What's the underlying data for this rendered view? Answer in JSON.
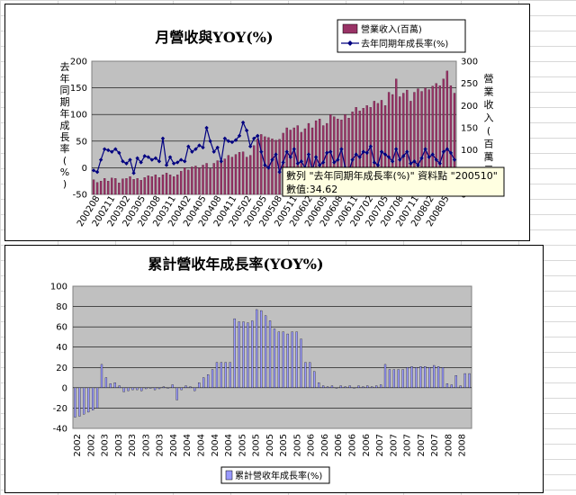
{
  "chart_data": [
    {
      "type": "bar+line",
      "title": "月營收與YOY(%)",
      "left_axis_label": "去年同期年成長率(%)",
      "right_axis_label": "營業收入(百萬元)",
      "left_ylim": [
        -50,
        200
      ],
      "left_ticks": [
        "-50",
        "0",
        "50",
        "100",
        "150",
        "200"
      ],
      "right_ylim": [
        0,
        300
      ],
      "right_ticks": [
        "0",
        "50",
        "100",
        "150",
        "200",
        "250",
        "300"
      ],
      "x_tick_labels": [
        "200208",
        "200211",
        "200302",
        "200305",
        "200308",
        "200311",
        "200402",
        "200405",
        "200408",
        "200411",
        "200502",
        "200505",
        "200508",
        "200511",
        "200602",
        "200605",
        "200608",
        "200611",
        "200702",
        "200705",
        "200708",
        "200711",
        "200802",
        "200805"
      ],
      "grid": true,
      "legend_position": "top-right",
      "series": [
        {
          "name": "營業收入(百萬)",
          "kind": "bar",
          "axis": "right",
          "color": "#993366",
          "values": [
            33,
            27,
            30,
            36,
            30,
            37,
            36,
            26,
            35,
            36,
            40,
            34,
            36,
            32,
            38,
            42,
            40,
            44,
            38,
            44,
            48,
            44,
            40,
            44,
            52,
            60,
            55,
            62,
            64,
            60,
            66,
            70,
            58,
            70,
            76,
            72,
            80,
            88,
            84,
            90,
            95,
            96,
            84,
            88,
            110,
            125,
            135,
            130,
            128,
            125,
            122,
            124,
            138,
            150,
            145,
            150,
            155,
            140,
            148,
            160,
            150,
            166,
            170,
            155,
            160,
            180,
            175,
            170,
            168,
            180,
            172,
            186,
            196,
            188,
            194,
            200,
            196,
            210,
            205,
            212,
            200,
            230,
            225,
            260,
            220,
            228,
            235,
            210,
            230,
            238,
            232,
            240,
            236,
            244,
            250,
            245,
            260,
            278,
            245,
            228
          ]
        },
        {
          "name": "去年同期年成長率(%)",
          "kind": "line",
          "axis": "left",
          "color": "#000080",
          "values": [
            -5,
            -8,
            15,
            35,
            33,
            30,
            35,
            28,
            12,
            8,
            15,
            -10,
            18,
            10,
            22,
            20,
            15,
            18,
            12,
            55,
            5,
            20,
            8,
            10,
            15,
            12,
            40,
            30,
            35,
            42,
            38,
            75,
            50,
            30,
            38,
            12,
            55,
            50,
            48,
            52,
            60,
            85,
            70,
            40,
            55,
            60,
            30,
            5,
            0,
            15,
            25,
            -8,
            10,
            30,
            20,
            35,
            8,
            12,
            0,
            25,
            -5,
            20,
            5,
            10,
            28,
            30,
            10,
            15,
            35,
            0,
            -8,
            15,
            25,
            20,
            30,
            28,
            40,
            10,
            5,
            30,
            25,
            20,
            12,
            35,
            15,
            22,
            30,
            8,
            12,
            5,
            18,
            35,
            20,
            25,
            15,
            8,
            30,
            35,
            28,
            15
          ]
        }
      ],
      "tooltip": {
        "line1": "數列 \"去年同期年成長率(%)\" 資料點 \"200510\"",
        "line2": "數值:34.62"
      }
    },
    {
      "type": "bar",
      "title": "累計營收年成長率(YOY%)",
      "ylim": [
        -40,
        100
      ],
      "y_ticks": [
        "-40",
        "-20",
        "0",
        "20",
        "40",
        "60",
        "80",
        "100"
      ],
      "x_tick_labels": [
        "2002",
        "2002",
        "2003",
        "2003",
        "2003",
        "2003",
        "2003",
        "2004",
        "2004",
        "2004",
        "2004",
        "2004",
        "2005",
        "2005",
        "2005",
        "2005",
        "2005",
        "2006",
        "2006",
        "2006",
        "2006",
        "2006",
        "2007",
        "2007",
        "2007",
        "2007",
        "2007",
        "2008",
        "2008"
      ],
      "grid": true,
      "legend_position": "bottom",
      "series": [
        {
          "name": "累計營收年成長率(%)",
          "color": "#9999FF",
          "values": [
            -29,
            -28,
            -26,
            -24,
            -22,
            -20,
            23,
            10,
            4,
            5,
            2,
            -4,
            -3,
            -2,
            -2,
            -3,
            -1,
            0,
            -2,
            -1,
            1,
            0,
            3,
            -12,
            -2,
            2,
            1,
            -3,
            5,
            10,
            13,
            18,
            25,
            25,
            25,
            25,
            68,
            65,
            65,
            64,
            66,
            77,
            76,
            71,
            66,
            58,
            55,
            55,
            53,
            55,
            55,
            48,
            25,
            25,
            16,
            5,
            2,
            1,
            2,
            0,
            2,
            1,
            2,
            0,
            2,
            1,
            2,
            1,
            2,
            3,
            23,
            18,
            18,
            18,
            18,
            20,
            21,
            20,
            21,
            21,
            20,
            22,
            21,
            20,
            4,
            3,
            12,
            2,
            14,
            14
          ]
        }
      ]
    }
  ]
}
